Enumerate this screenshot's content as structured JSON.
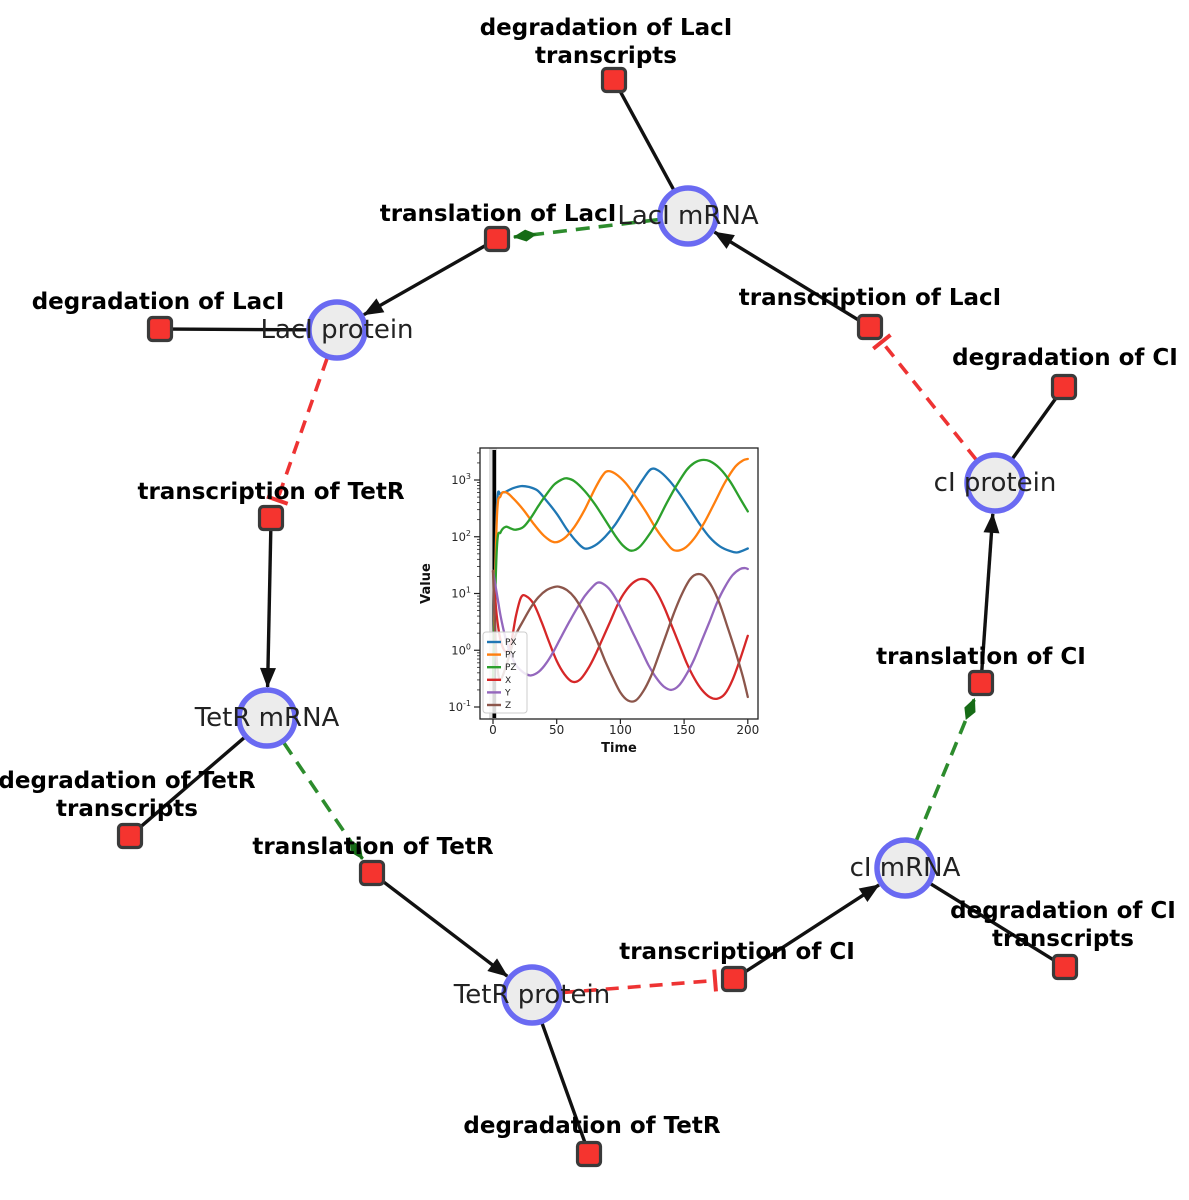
{
  "diagram": {
    "species": [
      {
        "id": "laci-mrna",
        "label": "LacI mRNA"
      },
      {
        "id": "laci-protein",
        "label": "LacI protein"
      },
      {
        "id": "ci-protein",
        "label": "cI protein"
      },
      {
        "id": "tetr-mrna",
        "label": "TetR mRNA"
      },
      {
        "id": "ci-mrna",
        "label": "cI mRNA"
      },
      {
        "id": "tetr-protein",
        "label": "TetR protein"
      }
    ],
    "reactions": [
      {
        "id": "deg-laci-transcripts",
        "lines": [
          "degradation of LacI",
          "transcripts"
        ]
      },
      {
        "id": "translation-laci",
        "lines": [
          "translation of LacI"
        ]
      },
      {
        "id": "transcription-laci",
        "lines": [
          "transcription of LacI"
        ]
      },
      {
        "id": "deg-laci",
        "lines": [
          "degradation of LacI"
        ]
      },
      {
        "id": "deg-ci",
        "lines": [
          "degradation of CI"
        ]
      },
      {
        "id": "transcription-tetr",
        "lines": [
          "transcription of TetR"
        ]
      },
      {
        "id": "translation-ci",
        "lines": [
          "translation of CI"
        ]
      },
      {
        "id": "deg-tetr-transcripts",
        "lines": [
          "degradation of TetR",
          "transcripts"
        ]
      },
      {
        "id": "translation-tetr",
        "lines": [
          "translation of TetR"
        ]
      },
      {
        "id": "transcription-ci",
        "lines": [
          "transcription of CI"
        ]
      },
      {
        "id": "deg-ci-transcripts",
        "lines": [
          "degradation of CI",
          "transcripts"
        ]
      },
      {
        "id": "deg-tetr",
        "lines": [
          "degradation of TetR"
        ]
      }
    ],
    "edges": [
      {
        "from": "laci-mrna",
        "to": "deg-laci-transcripts",
        "type": "consumption"
      },
      {
        "from": "transcription-laci",
        "to": "laci-mrna",
        "type": "production"
      },
      {
        "from": "laci-mrna",
        "to": "translation-laci",
        "type": "catalysis"
      },
      {
        "from": "translation-laci",
        "to": "laci-protein",
        "type": "production"
      },
      {
        "from": "laci-protein",
        "to": "deg-laci",
        "type": "consumption"
      },
      {
        "from": "laci-protein",
        "to": "transcription-tetr",
        "type": "inhibition"
      },
      {
        "from": "transcription-tetr",
        "to": "tetr-mrna",
        "type": "production"
      },
      {
        "from": "tetr-mrna",
        "to": "deg-tetr-transcripts",
        "type": "consumption"
      },
      {
        "from": "tetr-mrna",
        "to": "translation-tetr",
        "type": "catalysis"
      },
      {
        "from": "translation-tetr",
        "to": "tetr-protein",
        "type": "production"
      },
      {
        "from": "tetr-protein",
        "to": "deg-tetr",
        "type": "consumption"
      },
      {
        "from": "tetr-protein",
        "to": "transcription-ci",
        "type": "inhibition"
      },
      {
        "from": "transcription-ci",
        "to": "ci-mrna",
        "type": "production"
      },
      {
        "from": "ci-mrna",
        "to": "deg-ci-transcripts",
        "type": "consumption"
      },
      {
        "from": "ci-mrna",
        "to": "translation-ci",
        "type": "catalysis"
      },
      {
        "from": "translation-ci",
        "to": "ci-protein",
        "type": "production"
      },
      {
        "from": "ci-protein",
        "to": "deg-ci",
        "type": "consumption"
      },
      {
        "from": "ci-protein",
        "to": "transcription-laci",
        "type": "inhibition"
      }
    ],
    "colors": {
      "background": "#ffffff",
      "species_fill": "#ececec",
      "species_border": "#6a6af2",
      "reaction_fill": "#f5342f",
      "reaction_border": "#3a3a3a",
      "plain_edge": "#111111",
      "production_edge": "#111111",
      "catalysis_edge": "#2d8c2d",
      "catalysis_head": "#166b16",
      "inhibition_edge": "#ee3333"
    }
  },
  "chart_data": {
    "type": "line",
    "title": "",
    "xlabel": "Time",
    "ylabel": "Value",
    "x_ticks": [
      0,
      50,
      100,
      150,
      200
    ],
    "y_scale": "log",
    "y_tick_exponents": [
      -1,
      0,
      1,
      2,
      3
    ],
    "xlim": [
      -10,
      208
    ],
    "ylim": [
      0.06,
      3800
    ],
    "grid": false,
    "legend_position": "lower left",
    "vline_x": 1,
    "series": [
      {
        "name": "PX",
        "color": "#1f77b4",
        "points": [
          [
            0,
            0.3
          ],
          [
            3,
            300
          ],
          [
            6,
            560
          ],
          [
            10,
            620
          ],
          [
            16,
            720
          ],
          [
            22,
            780
          ],
          [
            28,
            755
          ],
          [
            35,
            650
          ],
          [
            42,
            430
          ],
          [
            50,
            255
          ],
          [
            58,
            135
          ],
          [
            65,
            85
          ],
          [
            72,
            62
          ],
          [
            80,
            70
          ],
          [
            88,
            100
          ],
          [
            96,
            165
          ],
          [
            104,
            320
          ],
          [
            112,
            650
          ],
          [
            118,
            1050
          ],
          [
            124,
            1550
          ],
          [
            130,
            1460
          ],
          [
            138,
            1000
          ],
          [
            146,
            590
          ],
          [
            154,
            320
          ],
          [
            162,
            170
          ],
          [
            170,
            98
          ],
          [
            178,
            68
          ],
          [
            186,
            56
          ],
          [
            192,
            53
          ],
          [
            200,
            62
          ]
        ]
      },
      {
        "name": "PY",
        "color": "#ff7f0e",
        "points": [
          [
            0,
            0.3
          ],
          [
            3,
            200
          ],
          [
            6,
            520
          ],
          [
            10,
            610
          ],
          [
            16,
            470
          ],
          [
            24,
            295
          ],
          [
            32,
            168
          ],
          [
            40,
            104
          ],
          [
            48,
            80
          ],
          [
            56,
            94
          ],
          [
            64,
            150
          ],
          [
            72,
            300
          ],
          [
            80,
            700
          ],
          [
            86,
            1200
          ],
          [
            90,
            1430
          ],
          [
            96,
            1290
          ],
          [
            104,
            890
          ],
          [
            112,
            510
          ],
          [
            120,
            275
          ],
          [
            128,
            138
          ],
          [
            136,
            79
          ],
          [
            142,
            58
          ],
          [
            150,
            62
          ],
          [
            158,
            94
          ],
          [
            166,
            180
          ],
          [
            174,
            400
          ],
          [
            182,
            900
          ],
          [
            190,
            1700
          ],
          [
            196,
            2200
          ],
          [
            200,
            2350
          ]
        ]
      },
      {
        "name": "PZ",
        "color": "#2ca02c",
        "points": [
          [
            0,
            0.3
          ],
          [
            3,
            60
          ],
          [
            6,
            120
          ],
          [
            10,
            150
          ],
          [
            14,
            140
          ],
          [
            18,
            133
          ],
          [
            24,
            150
          ],
          [
            30,
            220
          ],
          [
            36,
            360
          ],
          [
            42,
            560
          ],
          [
            48,
            830
          ],
          [
            54,
            1020
          ],
          [
            58,
            1070
          ],
          [
            64,
            950
          ],
          [
            72,
            640
          ],
          [
            80,
            375
          ],
          [
            88,
            198
          ],
          [
            96,
            104
          ],
          [
            102,
            70
          ],
          [
            108,
            57
          ],
          [
            114,
            63
          ],
          [
            120,
            90
          ],
          [
            128,
            170
          ],
          [
            136,
            380
          ],
          [
            144,
            800
          ],
          [
            152,
            1500
          ],
          [
            158,
            2000
          ],
          [
            164,
            2250
          ],
          [
            170,
            2150
          ],
          [
            178,
            1600
          ],
          [
            186,
            950
          ],
          [
            194,
            470
          ],
          [
            200,
            280
          ]
        ]
      },
      {
        "name": "X",
        "color": "#d62728",
        "points": [
          [
            0,
            25
          ],
          [
            3,
            4
          ],
          [
            6,
            1.5
          ],
          [
            10,
            0.95
          ],
          [
            14,
            1.3
          ],
          [
            18,
            4
          ],
          [
            22,
            8.5
          ],
          [
            26,
            9
          ],
          [
            32,
            6.5
          ],
          [
            38,
            3.2
          ],
          [
            44,
            1.4
          ],
          [
            50,
            0.65
          ],
          [
            56,
            0.38
          ],
          [
            62,
            0.28
          ],
          [
            68,
            0.3
          ],
          [
            74,
            0.45
          ],
          [
            80,
            0.8
          ],
          [
            86,
            1.6
          ],
          [
            92,
            3.2
          ],
          [
            98,
            6.5
          ],
          [
            104,
            11
          ],
          [
            110,
            15.5
          ],
          [
            116,
            18
          ],
          [
            122,
            16.5
          ],
          [
            128,
            11
          ],
          [
            134,
            6
          ],
          [
            140,
            2.8
          ],
          [
            146,
            1.3
          ],
          [
            152,
            0.6
          ],
          [
            158,
            0.32
          ],
          [
            164,
            0.2
          ],
          [
            170,
            0.15
          ],
          [
            176,
            0.14
          ],
          [
            182,
            0.17
          ],
          [
            188,
            0.3
          ],
          [
            194,
            0.7
          ],
          [
            200,
            1.8
          ]
        ]
      },
      {
        "name": "Y",
        "color": "#9467bd",
        "points": [
          [
            0,
            25
          ],
          [
            3,
            10
          ],
          [
            6,
            4
          ],
          [
            10,
            1.6
          ],
          [
            14,
            0.85
          ],
          [
            18,
            0.55
          ],
          [
            22,
            0.44
          ],
          [
            26,
            0.38
          ],
          [
            30,
            0.36
          ],
          [
            36,
            0.42
          ],
          [
            42,
            0.6
          ],
          [
            48,
            1.0
          ],
          [
            54,
            1.8
          ],
          [
            60,
            3.2
          ],
          [
            66,
            5.5
          ],
          [
            72,
            9
          ],
          [
            78,
            13
          ],
          [
            82,
            15.5
          ],
          [
            86,
            15
          ],
          [
            92,
            11.5
          ],
          [
            98,
            7
          ],
          [
            104,
            3.8
          ],
          [
            110,
            2
          ],
          [
            116,
            1.05
          ],
          [
            122,
            0.55
          ],
          [
            128,
            0.33
          ],
          [
            134,
            0.23
          ],
          [
            140,
            0.2
          ],
          [
            146,
            0.24
          ],
          [
            152,
            0.38
          ],
          [
            158,
            0.7
          ],
          [
            164,
            1.5
          ],
          [
            170,
            3.2
          ],
          [
            176,
            7
          ],
          [
            182,
            13
          ],
          [
            188,
            21
          ],
          [
            194,
            27
          ],
          [
            198,
            28
          ],
          [
            200,
            27
          ]
        ]
      },
      {
        "name": "Z",
        "color": "#8c564b",
        "points": [
          [
            0,
            25
          ],
          [
            2,
            1.5
          ],
          [
            4,
            0.4
          ],
          [
            6,
            0.3
          ],
          [
            10,
            0.5
          ],
          [
            14,
            1.0
          ],
          [
            18,
            1.9
          ],
          [
            24,
            3.4
          ],
          [
            30,
            5.8
          ],
          [
            36,
            8.8
          ],
          [
            42,
            11.5
          ],
          [
            48,
            13
          ],
          [
            52,
            13.2
          ],
          [
            58,
            11.5
          ],
          [
            64,
            8.5
          ],
          [
            70,
            5.2
          ],
          [
            76,
            2.8
          ],
          [
            82,
            1.4
          ],
          [
            88,
            0.65
          ],
          [
            94,
            0.33
          ],
          [
            100,
            0.18
          ],
          [
            106,
            0.13
          ],
          [
            112,
            0.13
          ],
          [
            118,
            0.19
          ],
          [
            124,
            0.35
          ],
          [
            130,
            0.8
          ],
          [
            136,
            1.9
          ],
          [
            142,
            4.5
          ],
          [
            148,
            9.5
          ],
          [
            154,
            17
          ],
          [
            158,
            21
          ],
          [
            162,
            22
          ],
          [
            166,
            20
          ],
          [
            172,
            13
          ],
          [
            178,
            6.5
          ],
          [
            184,
            2.6
          ],
          [
            190,
            1.0
          ],
          [
            196,
            0.35
          ],
          [
            200,
            0.15
          ]
        ]
      }
    ]
  }
}
